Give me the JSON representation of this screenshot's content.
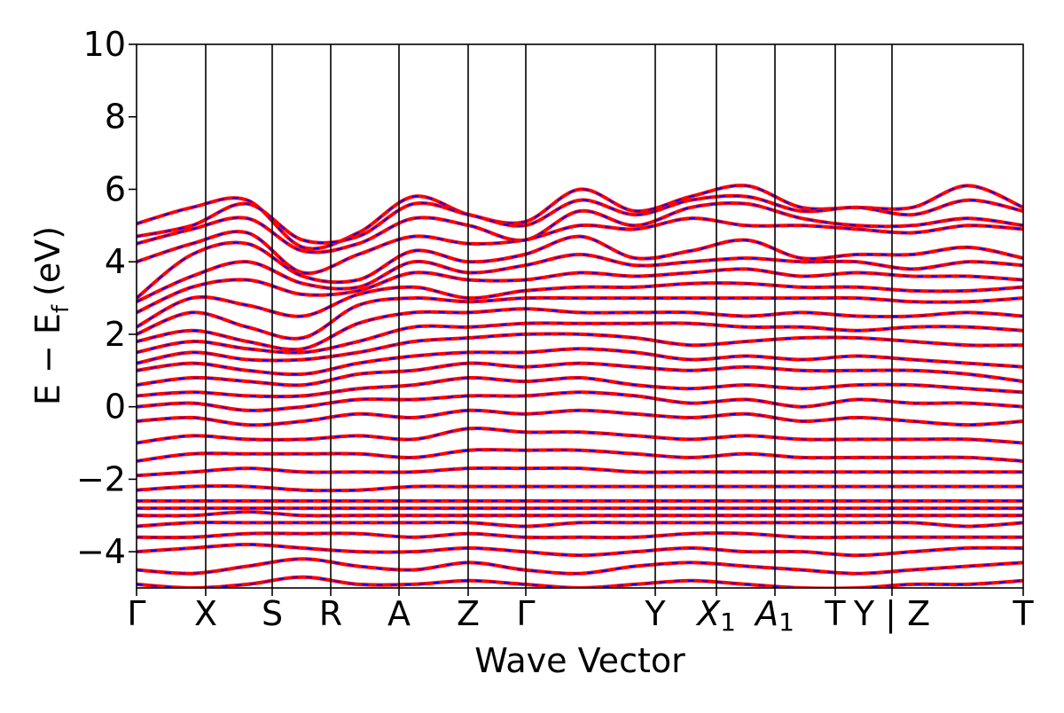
{
  "chart_data": {
    "type": "line",
    "title": "",
    "xlabel": "Wave Vector",
    "ylabel": "E − E",
    "ylabel_sub": "f",
    "ylabel_units": "(eV)",
    "ylim": [
      -5,
      10
    ],
    "xlim": [
      0,
      1
    ],
    "grid": false,
    "legend": "none",
    "yticks": [
      -4,
      -2,
      0,
      2,
      4,
      6,
      8,
      10
    ],
    "ytick_labels": [
      "−4",
      "−2",
      "0",
      "2",
      "4",
      "6",
      "8",
      "10"
    ],
    "kpoints": [
      {
        "label": "Γ",
        "x": 0.0
      },
      {
        "label": "X",
        "x": 0.078
      },
      {
        "label": "S",
        "x": 0.153
      },
      {
        "label": "R",
        "x": 0.219
      },
      {
        "label": "A",
        "x": 0.296
      },
      {
        "label": "Z",
        "x": 0.374
      },
      {
        "label": "Γ",
        "x": 0.439
      },
      {
        "label": "Y",
        "x": 0.585
      },
      {
        "label": "X",
        "sub": "1",
        "x": 0.654
      },
      {
        "label": "A",
        "sub": "1",
        "x": 0.72
      },
      {
        "label": "T",
        "x": 0.788
      },
      {
        "label": "Y | Z",
        "x": 0.852
      },
      {
        "label": "T",
        "x": 1.0
      }
    ],
    "series": [
      {
        "color": "#ff0000",
        "style": "solid"
      },
      {
        "color": "#0000ff",
        "style": "dashed"
      }
    ],
    "bands": [
      [
        5.05,
        5.5,
        5.7,
        4.4,
        4.8,
        5.8,
        5.3,
        5.1,
        6.0,
        5.4,
        5.8,
        6.1,
        5.5,
        5.5,
        5.5,
        6.1,
        5.5
      ],
      [
        4.7,
        5.0,
        5.6,
        4.6,
        4.7,
        5.6,
        5.3,
        5.0,
        5.7,
        5.3,
        5.7,
        5.8,
        5.4,
        5.5,
        5.3,
        5.7,
        5.4
      ],
      [
        4.5,
        4.9,
        5.2,
        4.3,
        4.5,
        5.2,
        5.0,
        4.6,
        5.4,
        5.0,
        5.5,
        5.6,
        5.2,
        5.0,
        5.0,
        5.2,
        5.0
      ],
      [
        4.0,
        4.5,
        4.8,
        3.7,
        4.2,
        4.7,
        4.5,
        4.6,
        5.0,
        4.9,
        5.2,
        5.0,
        5.0,
        4.9,
        4.8,
        5.0,
        4.9
      ],
      [
        3.0,
        4.2,
        4.5,
        3.6,
        3.5,
        4.3,
        4.0,
        4.2,
        4.7,
        4.1,
        4.3,
        4.6,
        4.1,
        4.2,
        4.2,
        4.4,
        4.1
      ],
      [
        2.9,
        3.6,
        4.0,
        3.4,
        3.3,
        4.0,
        3.7,
        3.9,
        4.2,
        3.9,
        4.0,
        4.1,
        4.0,
        4.0,
        3.8,
        4.0,
        3.9
      ],
      [
        2.6,
        3.3,
        3.5,
        3.1,
        3.2,
        3.7,
        3.5,
        3.5,
        3.7,
        3.6,
        3.7,
        3.8,
        3.6,
        3.7,
        3.6,
        3.6,
        3.5
      ],
      [
        2.2,
        3.0,
        2.8,
        2.5,
        3.1,
        3.3,
        3.0,
        3.2,
        3.3,
        3.3,
        3.4,
        3.4,
        3.3,
        3.3,
        3.2,
        3.2,
        3.3
      ],
      [
        2.0,
        2.6,
        2.2,
        1.9,
        2.8,
        3.0,
        2.9,
        3.0,
        3.0,
        3.0,
        3.0,
        3.0,
        3.0,
        3.0,
        2.9,
        2.9,
        3.0
      ],
      [
        1.8,
        2.1,
        1.8,
        1.6,
        2.3,
        2.6,
        2.6,
        2.7,
        2.6,
        2.6,
        2.6,
        2.5,
        2.6,
        2.5,
        2.5,
        2.6,
        2.5
      ],
      [
        1.5,
        1.8,
        1.6,
        1.5,
        1.8,
        2.2,
        2.2,
        2.3,
        2.3,
        2.3,
        2.3,
        2.2,
        2.2,
        2.1,
        2.2,
        2.2,
        2.1
      ],
      [
        1.2,
        1.5,
        1.3,
        1.3,
        1.5,
        1.8,
        1.9,
        2.0,
        2.0,
        1.9,
        1.7,
        1.8,
        1.9,
        1.9,
        1.8,
        1.7,
        1.7
      ],
      [
        1.0,
        1.2,
        1.0,
        0.9,
        1.2,
        1.4,
        1.5,
        1.5,
        1.6,
        1.5,
        1.3,
        1.4,
        1.3,
        1.4,
        1.3,
        1.2,
        1.1
      ],
      [
        0.6,
        0.8,
        0.7,
        0.6,
        0.9,
        1.0,
        1.2,
        1.1,
        1.2,
        1.1,
        1.0,
        1.1,
        1.0,
        1.0,
        1.0,
        0.9,
        0.7
      ],
      [
        0.3,
        0.4,
        0.3,
        0.3,
        0.5,
        0.6,
        0.8,
        0.7,
        0.8,
        0.6,
        0.5,
        0.6,
        0.5,
        0.6,
        0.6,
        0.5,
        0.4
      ],
      [
        0.0,
        0.1,
        -0.1,
        0.0,
        0.2,
        0.2,
        0.3,
        0.3,
        0.4,
        0.3,
        0.1,
        0.2,
        0.0,
        0.2,
        0.1,
        0.1,
        0.0
      ],
      [
        -0.4,
        -0.3,
        -0.5,
        -0.4,
        -0.2,
        -0.3,
        -0.1,
        -0.2,
        -0.1,
        -0.2,
        -0.3,
        -0.2,
        -0.4,
        -0.3,
        -0.4,
        -0.5,
        -0.4
      ],
      [
        -1.0,
        -0.8,
        -0.9,
        -0.9,
        -0.8,
        -0.9,
        -0.6,
        -0.7,
        -0.7,
        -0.8,
        -0.9,
        -0.8,
        -0.9,
        -0.9,
        -0.9,
        -0.9,
        -1.0
      ],
      [
        -1.5,
        -1.3,
        -1.3,
        -1.3,
        -1.3,
        -1.4,
        -1.2,
        -1.2,
        -1.2,
        -1.3,
        -1.4,
        -1.3,
        -1.4,
        -1.4,
        -1.4,
        -1.4,
        -1.5
      ],
      [
        -1.9,
        -1.8,
        -1.7,
        -1.8,
        -1.8,
        -1.8,
        -1.7,
        -1.7,
        -1.7,
        -1.8,
        -1.8,
        -1.8,
        -1.8,
        -1.8,
        -1.8,
        -1.8,
        -1.8
      ],
      [
        -2.3,
        -2.2,
        -2.2,
        -2.3,
        -2.3,
        -2.2,
        -2.2,
        -2.2,
        -2.2,
        -2.2,
        -2.2,
        -2.2,
        -2.2,
        -2.2,
        -2.2,
        -2.2,
        -2.2
      ],
      [
        -2.6,
        -2.6,
        -2.6,
        -2.6,
        -2.6,
        -2.6,
        -2.6,
        -2.6,
        -2.6,
        -2.6,
        -2.6,
        -2.6,
        -2.6,
        -2.6,
        -2.6,
        -2.6,
        -2.6
      ],
      [
        -2.8,
        -2.8,
        -2.8,
        -2.8,
        -2.8,
        -2.8,
        -2.8,
        -2.8,
        -2.8,
        -2.8,
        -2.8,
        -2.8,
        -2.8,
        -2.8,
        -2.8,
        -2.8,
        -2.8
      ],
      [
        -3.0,
        -3.0,
        -2.9,
        -3.0,
        -3.0,
        -3.0,
        -3.0,
        -3.0,
        -3.0,
        -3.0,
        -3.0,
        -3.0,
        -3.0,
        -3.0,
        -3.0,
        -3.0,
        -3.0
      ],
      [
        -3.3,
        -3.2,
        -3.2,
        -3.2,
        -3.2,
        -3.2,
        -3.2,
        -3.3,
        -3.2,
        -3.2,
        -3.2,
        -3.2,
        -3.2,
        -3.2,
        -3.2,
        -3.3,
        -3.2
      ],
      [
        -3.6,
        -3.6,
        -3.5,
        -3.5,
        -3.5,
        -3.6,
        -3.5,
        -3.6,
        -3.6,
        -3.6,
        -3.5,
        -3.5,
        -3.6,
        -3.6,
        -3.6,
        -3.6,
        -3.6
      ],
      [
        -4.0,
        -3.9,
        -3.8,
        -3.9,
        -4.0,
        -4.0,
        -3.9,
        -4.0,
        -4.1,
        -4.0,
        -3.9,
        -4.0,
        -4.0,
        -4.1,
        -4.0,
        -3.9,
        -3.9
      ],
      [
        -4.5,
        -4.6,
        -4.4,
        -4.2,
        -4.4,
        -4.5,
        -4.3,
        -4.5,
        -4.6,
        -4.4,
        -4.3,
        -4.4,
        -4.5,
        -4.6,
        -4.5,
        -4.4,
        -4.3
      ],
      [
        -4.9,
        -5.0,
        -4.9,
        -4.7,
        -4.9,
        -4.9,
        -4.8,
        -4.9,
        -5.0,
        -4.9,
        -4.8,
        -4.9,
        -5.0,
        -5.0,
        -4.9,
        -4.9,
        -4.8
      ]
    ]
  }
}
